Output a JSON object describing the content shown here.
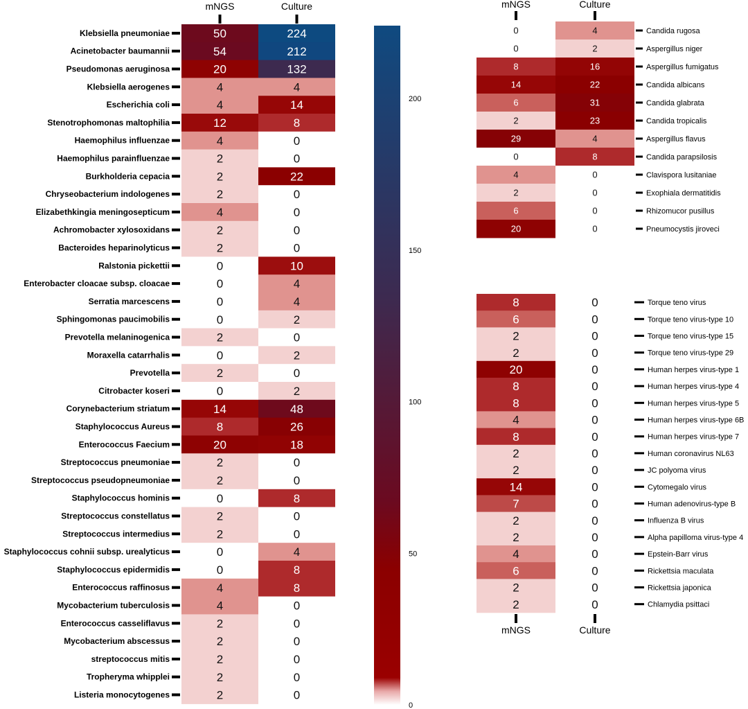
{
  "chart_data": [
    {
      "type": "heatmap",
      "columns": [
        "mNGS",
        "Culture"
      ],
      "rows": [
        "Klebsiella pneumoniae",
        "Acinetobacter baumannii",
        "Pseudomonas aeruginosa",
        "Klebsiella aerogenes",
        "Escherichia coli",
        "Stenotrophomonas maltophilia",
        "Haemophilus influenzae",
        "Haemophilus parainfluenzae",
        "Burkholderia cepacia",
        "Chryseobacterium indologenes",
        "Elizabethkingia meningosepticum",
        "Achromobacter xylosoxidans",
        "Bacteroides heparinolyticus",
        "Ralstonia pickettii",
        "Enterobacter cloacae subsp. cloacae",
        "Serratia marcescens",
        "Sphingomonas paucimobilis",
        "Prevotella melaninogenica",
        "Moraxella catarrhalis",
        "Prevotella",
        "Citrobacter koseri",
        "Corynebacterium striatum",
        "Staphylococcus Aureus",
        "Enterococcus Faecium",
        "Streptococcus pneumoniae",
        "Streptococcus pseudopneumoniae",
        "Staphylococcus hominis",
        "Streptococcus constellatus",
        "Streptococcus intermedius",
        "Staphylococcus cohnii subsp. urealyticus",
        "Staphylococcus epidermidis",
        "Enterococcus raffinosus",
        "Mycobacterium tuberculosis",
        "Enterococcus casseliflavus",
        "Mycobacterium abscessus",
        "streptococcus mitis",
        "Tropheryma whipplei",
        "Listeria monocytogenes"
      ],
      "values": [
        [
          50,
          224
        ],
        [
          54,
          212
        ],
        [
          20,
          132
        ],
        [
          4,
          4
        ],
        [
          4,
          14
        ],
        [
          12,
          8
        ],
        [
          4,
          0
        ],
        [
          2,
          0
        ],
        [
          2,
          22
        ],
        [
          2,
          0
        ],
        [
          4,
          0
        ],
        [
          2,
          0
        ],
        [
          2,
          0
        ],
        [
          0,
          10
        ],
        [
          0,
          4
        ],
        [
          0,
          4
        ],
        [
          0,
          2
        ],
        [
          2,
          0
        ],
        [
          0,
          2
        ],
        [
          2,
          0
        ],
        [
          0,
          2
        ],
        [
          14,
          48
        ],
        [
          8,
          26
        ],
        [
          20,
          18
        ],
        [
          2,
          0
        ],
        [
          2,
          0
        ],
        [
          0,
          8
        ],
        [
          2,
          0
        ],
        [
          2,
          0
        ],
        [
          0,
          4
        ],
        [
          0,
          8
        ],
        [
          4,
          8
        ],
        [
          4,
          0
        ],
        [
          2,
          0
        ],
        [
          2,
          0
        ],
        [
          2,
          0
        ],
        [
          2,
          0
        ],
        [
          2,
          0
        ]
      ]
    },
    {
      "type": "heatmap",
      "columns": [
        "mNGS",
        "Culture"
      ],
      "rows": [
        "Candida rugosa",
        "Aspergillus niger",
        "Aspergillus fumigatus",
        "Candida albicans",
        "Candida glabrata",
        "Candida tropicalis",
        "Aspergillus flavus",
        "Candida parapsilosis",
        "Clavispora lusitaniae",
        "Exophiala dermatitidis",
        "Rhizomucor pusillus",
        "Pneumocystis jiroveci"
      ],
      "values": [
        [
          0,
          4
        ],
        [
          0,
          2
        ],
        [
          8,
          16
        ],
        [
          14,
          22
        ],
        [
          6,
          31
        ],
        [
          2,
          23
        ],
        [
          29,
          4
        ],
        [
          0,
          8
        ],
        [
          4,
          0
        ],
        [
          2,
          0
        ],
        [
          6,
          0
        ],
        [
          20,
          0
        ]
      ]
    },
    {
      "type": "heatmap",
      "columns": [
        "mNGS",
        "Culture"
      ],
      "rows": [
        "Torque teno virus",
        "Torque teno virus-type 10",
        "Torque teno virus-type 15",
        "Torque teno virus-type 29",
        "Human herpes virus-type 1",
        "Human herpes virus-type 4",
        "Human herpes virus-type 5",
        "Human herpes virus-type 6B",
        "Human herpes virus-type 7",
        "Human coronavirus NL63",
        "JC polyoma virus",
        "Cytomegalo virus",
        "Human adenovirus-type B",
        "Influenza B virus",
        "Alpha papilloma virus-type 4",
        "Epstein-Barr virus",
        "Rickettsia maculata",
        "Rickettsia japonica",
        "Chlamydia psittaci"
      ],
      "values": [
        [
          8,
          0
        ],
        [
          6,
          0
        ],
        [
          2,
          0
        ],
        [
          2,
          0
        ],
        [
          20,
          0
        ],
        [
          8,
          0
        ],
        [
          8,
          0
        ],
        [
          4,
          0
        ],
        [
          8,
          0
        ],
        [
          2,
          0
        ],
        [
          2,
          0
        ],
        [
          14,
          0
        ],
        [
          7,
          0
        ],
        [
          2,
          0
        ],
        [
          2,
          0
        ],
        [
          4,
          0
        ],
        [
          6,
          0
        ],
        [
          2,
          0
        ],
        [
          2,
          0
        ]
      ]
    }
  ],
  "colorbar": {
    "range": [
      0,
      224
    ],
    "ticks": [
      0,
      50,
      100,
      150,
      200
    ],
    "colors": {
      "low": "#ffffff",
      "mid": "#8b0000",
      "high": "#0f4a80"
    }
  }
}
